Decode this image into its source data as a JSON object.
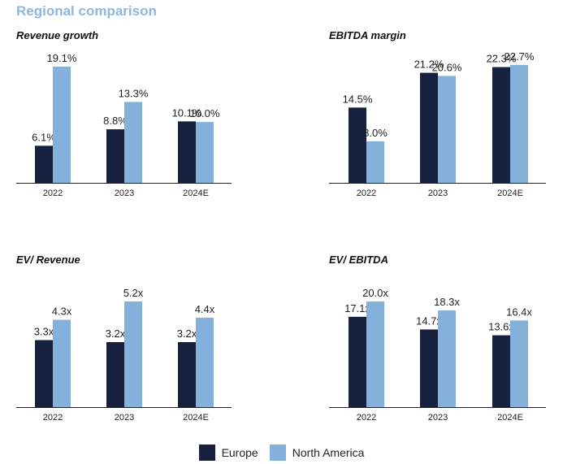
{
  "page_title": "Regional comparison",
  "colors": {
    "europe": "#17203f",
    "north_america": "#84b1dc",
    "title": "#8fb7dd",
    "axis": "#222222"
  },
  "legend": [
    {
      "name": "Europe",
      "color": "#17203f"
    },
    {
      "name": "North America",
      "color": "#84b1dc"
    }
  ],
  "chart_data": [
    {
      "type": "bar",
      "title": "Revenue growth",
      "categories": [
        "2022",
        "2023",
        "2024E"
      ],
      "series": [
        {
          "name": "Europe",
          "values": [
            6.1,
            8.8,
            10.1
          ],
          "labels": [
            "6.1%",
            "8.8%",
            "10.1%"
          ]
        },
        {
          "name": "North America",
          "values": [
            19.1,
            13.3,
            10.0
          ],
          "labels": [
            "19.1%",
            "13.3%",
            "10.0%"
          ]
        }
      ],
      "ylim": [
        0,
        19.1
      ]
    },
    {
      "type": "bar",
      "title": "EBITDA margin",
      "categories": [
        "2022",
        "2023",
        "2024E"
      ],
      "series": [
        {
          "name": "Europe",
          "values": [
            14.5,
            21.2,
            22.3
          ],
          "labels": [
            "14.5%",
            "21.2%",
            "22.3%"
          ]
        },
        {
          "name": "North America",
          "values": [
            8.0,
            20.6,
            22.7
          ],
          "labels": [
            "8.0%",
            "20.6%",
            "22.7%"
          ]
        }
      ],
      "ylim": [
        0,
        22.7
      ]
    },
    {
      "type": "bar",
      "title": "EV/ Revenue",
      "categories": [
        "2022",
        "2023",
        "2024E"
      ],
      "series": [
        {
          "name": "Europe",
          "values": [
            3.3,
            3.2,
            3.2
          ],
          "labels": [
            "3.3x",
            "3.2x",
            "3.2x"
          ]
        },
        {
          "name": "North America",
          "values": [
            4.3,
            5.2,
            4.4
          ],
          "labels": [
            "4.3x",
            "5.2x",
            "4.4x"
          ]
        }
      ],
      "ylim": [
        0,
        5.2
      ]
    },
    {
      "type": "bar",
      "title": "EV/ EBITDA",
      "categories": [
        "2022",
        "2023",
        "2024E"
      ],
      "series": [
        {
          "name": "Europe",
          "values": [
            17.1,
            14.7,
            13.6
          ],
          "labels": [
            "17.1x",
            "14.7x",
            "13.6x"
          ]
        },
        {
          "name": "North America",
          "values": [
            20.0,
            18.3,
            16.4
          ],
          "labels": [
            "20.0x",
            "18.3x",
            "16.4x"
          ]
        }
      ],
      "ylim": [
        0,
        20.0
      ]
    }
  ]
}
